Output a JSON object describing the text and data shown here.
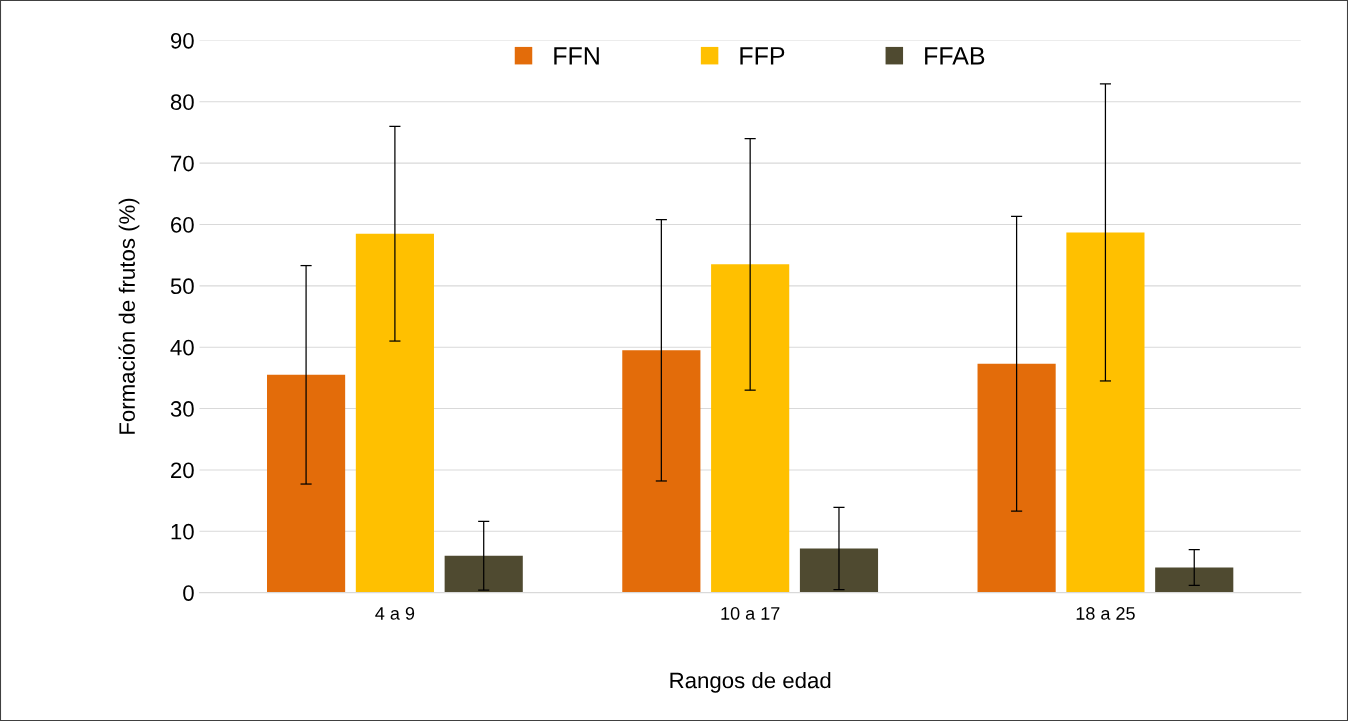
{
  "chart_data": {
    "type": "bar",
    "xlabel": "Rangos de edad",
    "ylabel": "Formación de frutos (%)",
    "categories": [
      "4 a 9",
      "10 a 17",
      "18 a 25"
    ],
    "series": [
      {
        "name": "FFN",
        "color": "#e36c0a",
        "values": [
          35.5,
          39.5,
          37.3
        ],
        "errors": [
          17.8,
          21.3,
          24.0
        ]
      },
      {
        "name": "FFP",
        "color": "#ffc000",
        "values": [
          58.5,
          53.5,
          58.7
        ],
        "errors": [
          17.5,
          20.5,
          24.2
        ]
      },
      {
        "name": "FFAB",
        "color": "#4f4a30",
        "values": [
          6.0,
          7.2,
          4.1
        ],
        "errors": [
          5.6,
          6.7,
          2.9
        ]
      }
    ],
    "ylim": [
      0,
      90
    ],
    "yticks": [
      0,
      10,
      20,
      30,
      40,
      50,
      60,
      70,
      80,
      90
    ],
    "grid": "y",
    "legend": "top"
  }
}
